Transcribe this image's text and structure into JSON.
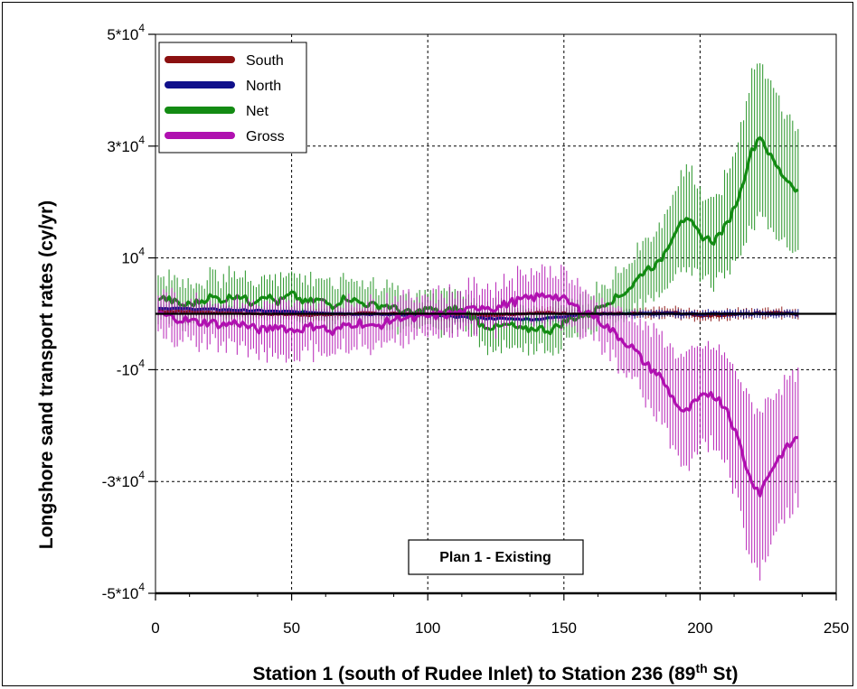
{
  "chart_data": {
    "type": "line",
    "annotation": "Plan 1 - Existing",
    "xlabel": {
      "main": "Station 1 (south of Rudee Inlet) to Station 236 (89",
      "sup": "th",
      "tail": " St)"
    },
    "ylabel": "Longshore sand transport rates (cy/yr)",
    "xlim": [
      0,
      250
    ],
    "ylim": [
      -50000,
      50000
    ],
    "grid": true,
    "legend_position": "top-left",
    "x_ticks": [
      0,
      50,
      100,
      150,
      200,
      250
    ],
    "x_tick_labels": [
      "0",
      "50",
      "100",
      "150",
      "200",
      "250"
    ],
    "y_ticks": [
      50000,
      30000,
      10000,
      -10000,
      -30000,
      -50000
    ],
    "y_tick_labels": [
      {
        "base": "5*10",
        "exp": "4"
      },
      {
        "base": "3*10",
        "exp": "4"
      },
      {
        "base": "10",
        "exp": "4"
      },
      {
        "base": "-10",
        "exp": "4"
      },
      {
        "base": "-3*10",
        "exp": "4"
      },
      {
        "base": "-5*10",
        "exp": "4"
      }
    ],
    "series": [
      {
        "name": "South",
        "color": "#8b1010",
        "err": 800,
        "points": [
          [
            1,
            500
          ],
          [
            20,
            300
          ],
          [
            40,
            0
          ],
          [
            60,
            -200
          ],
          [
            80,
            100
          ],
          [
            100,
            0
          ],
          [
            120,
            -300
          ],
          [
            140,
            200
          ],
          [
            160,
            0
          ],
          [
            170,
            0
          ],
          [
            180,
            0
          ],
          [
            190,
            200
          ],
          [
            200,
            -300
          ],
          [
            210,
            -200
          ],
          [
            220,
            100
          ],
          [
            230,
            300
          ],
          [
            236,
            -200
          ]
        ]
      },
      {
        "name": "North",
        "color": "#10108b",
        "err": 600,
        "points": [
          [
            1,
            1000
          ],
          [
            20,
            800
          ],
          [
            40,
            500
          ],
          [
            60,
            200
          ],
          [
            80,
            -100
          ],
          [
            100,
            -200
          ],
          [
            120,
            -800
          ],
          [
            140,
            -1000
          ],
          [
            155,
            -200
          ],
          [
            160,
            0
          ],
          [
            170,
            0
          ],
          [
            200,
            0
          ],
          [
            236,
            0
          ]
        ]
      },
      {
        "name": "Net",
        "color": "#138b13",
        "err": 3000,
        "points": [
          [
            1,
            3000
          ],
          [
            5,
            2500
          ],
          [
            10,
            1500
          ],
          [
            15,
            2000
          ],
          [
            20,
            3000
          ],
          [
            25,
            2500
          ],
          [
            30,
            3500
          ],
          [
            35,
            2000
          ],
          [
            40,
            3500
          ],
          [
            45,
            2000
          ],
          [
            50,
            3500
          ],
          [
            55,
            2000
          ],
          [
            60,
            2500
          ],
          [
            65,
            1500
          ],
          [
            70,
            3000
          ],
          [
            75,
            2000
          ],
          [
            80,
            1500
          ],
          [
            85,
            1500
          ],
          [
            90,
            500
          ],
          [
            95,
            0
          ],
          [
            100,
            1000
          ],
          [
            105,
            0
          ],
          [
            110,
            1000
          ],
          [
            115,
            0
          ],
          [
            120,
            -2000
          ],
          [
            125,
            -2500
          ],
          [
            130,
            -2000
          ],
          [
            135,
            -3000
          ],
          [
            140,
            -2500
          ],
          [
            145,
            -3000
          ],
          [
            150,
            -1500
          ],
          [
            155,
            -500
          ],
          [
            160,
            0
          ],
          [
            165,
            2000
          ],
          [
            170,
            3000
          ],
          [
            175,
            5000
          ],
          [
            180,
            8000
          ],
          [
            185,
            9000
          ],
          [
            190,
            14000
          ],
          [
            193,
            17000
          ],
          [
            197,
            16000
          ],
          [
            200,
            14000
          ],
          [
            205,
            13000
          ],
          [
            210,
            16000
          ],
          [
            215,
            22000
          ],
          [
            218,
            28000
          ],
          [
            222,
            32000
          ],
          [
            226,
            28000
          ],
          [
            230,
            25000
          ],
          [
            236,
            22000
          ]
        ]
      },
      {
        "name": "Gross",
        "color": "#b010b0",
        "err": 3500,
        "points": [
          [
            1,
            0
          ],
          [
            5,
            -500
          ],
          [
            10,
            -1000
          ],
          [
            15,
            -1500
          ],
          [
            20,
            -1500
          ],
          [
            25,
            -2000
          ],
          [
            30,
            -1500
          ],
          [
            35,
            -2500
          ],
          [
            40,
            -3000
          ],
          [
            45,
            -2000
          ],
          [
            50,
            -3000
          ],
          [
            55,
            -2500
          ],
          [
            60,
            -2000
          ],
          [
            65,
            -3500
          ],
          [
            70,
            -2000
          ],
          [
            75,
            -1500
          ],
          [
            80,
            -2500
          ],
          [
            85,
            -1500
          ],
          [
            90,
            -500
          ],
          [
            95,
            -1000
          ],
          [
            100,
            -500
          ],
          [
            105,
            -200
          ],
          [
            110,
            0
          ],
          [
            115,
            500
          ],
          [
            120,
            1500
          ],
          [
            125,
            1000
          ],
          [
            130,
            2000
          ],
          [
            135,
            2500
          ],
          [
            140,
            3000
          ],
          [
            145,
            3500
          ],
          [
            150,
            2500
          ],
          [
            155,
            1000
          ],
          [
            160,
            0
          ],
          [
            165,
            -2000
          ],
          [
            170,
            -4000
          ],
          [
            175,
            -6000
          ],
          [
            180,
            -9000
          ],
          [
            185,
            -11000
          ],
          [
            190,
            -15000
          ],
          [
            194,
            -18000
          ],
          [
            198,
            -16000
          ],
          [
            204,
            -14000
          ],
          [
            210,
            -17000
          ],
          [
            215,
            -24000
          ],
          [
            218,
            -29000
          ],
          [
            222,
            -32000
          ],
          [
            226,
            -28000
          ],
          [
            230,
            -25000
          ],
          [
            236,
            -22000
          ]
        ]
      }
    ]
  }
}
